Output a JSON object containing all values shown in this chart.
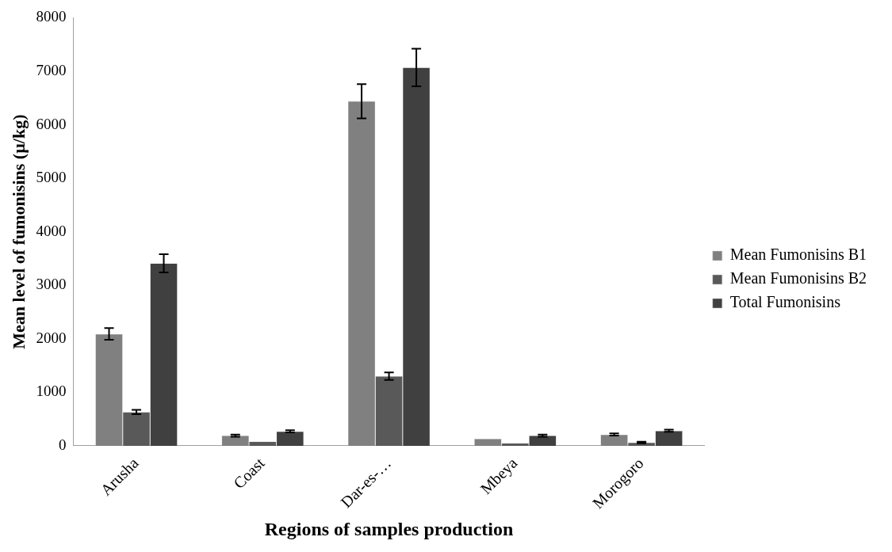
{
  "chart_data": {
    "type": "bar",
    "xlabel": "Regions of samples production",
    "ylabel": "Mean level of fumonisins (µ/kg)",
    "categories": [
      "Arusha",
      "Coast",
      "Dar-es-…",
      "Mbeya",
      "Morogoro"
    ],
    "series": [
      {
        "name": "Mean Fumonisins B1",
        "color": "#808080",
        "values": [
          2090,
          190,
          6440,
          130,
          210
        ],
        "errors": [
          110,
          20,
          320,
          null,
          20
        ]
      },
      {
        "name": "Mean Fumonisins B2",
        "color": "#595959",
        "values": [
          630,
          80,
          1300,
          50,
          60
        ],
        "errors": [
          40,
          null,
          70,
          null,
          15
        ]
      },
      {
        "name": "Total Fumonisins",
        "color": "#404040",
        "values": [
          3410,
          270,
          7070,
          190,
          280
        ],
        "errors": [
          170,
          20,
          350,
          20,
          20
        ]
      }
    ],
    "ylim": [
      0,
      8000
    ],
    "yticks": [
      0,
      1000,
      2000,
      3000,
      4000,
      5000,
      6000,
      7000,
      8000
    ],
    "grid": false,
    "legend": "right"
  }
}
